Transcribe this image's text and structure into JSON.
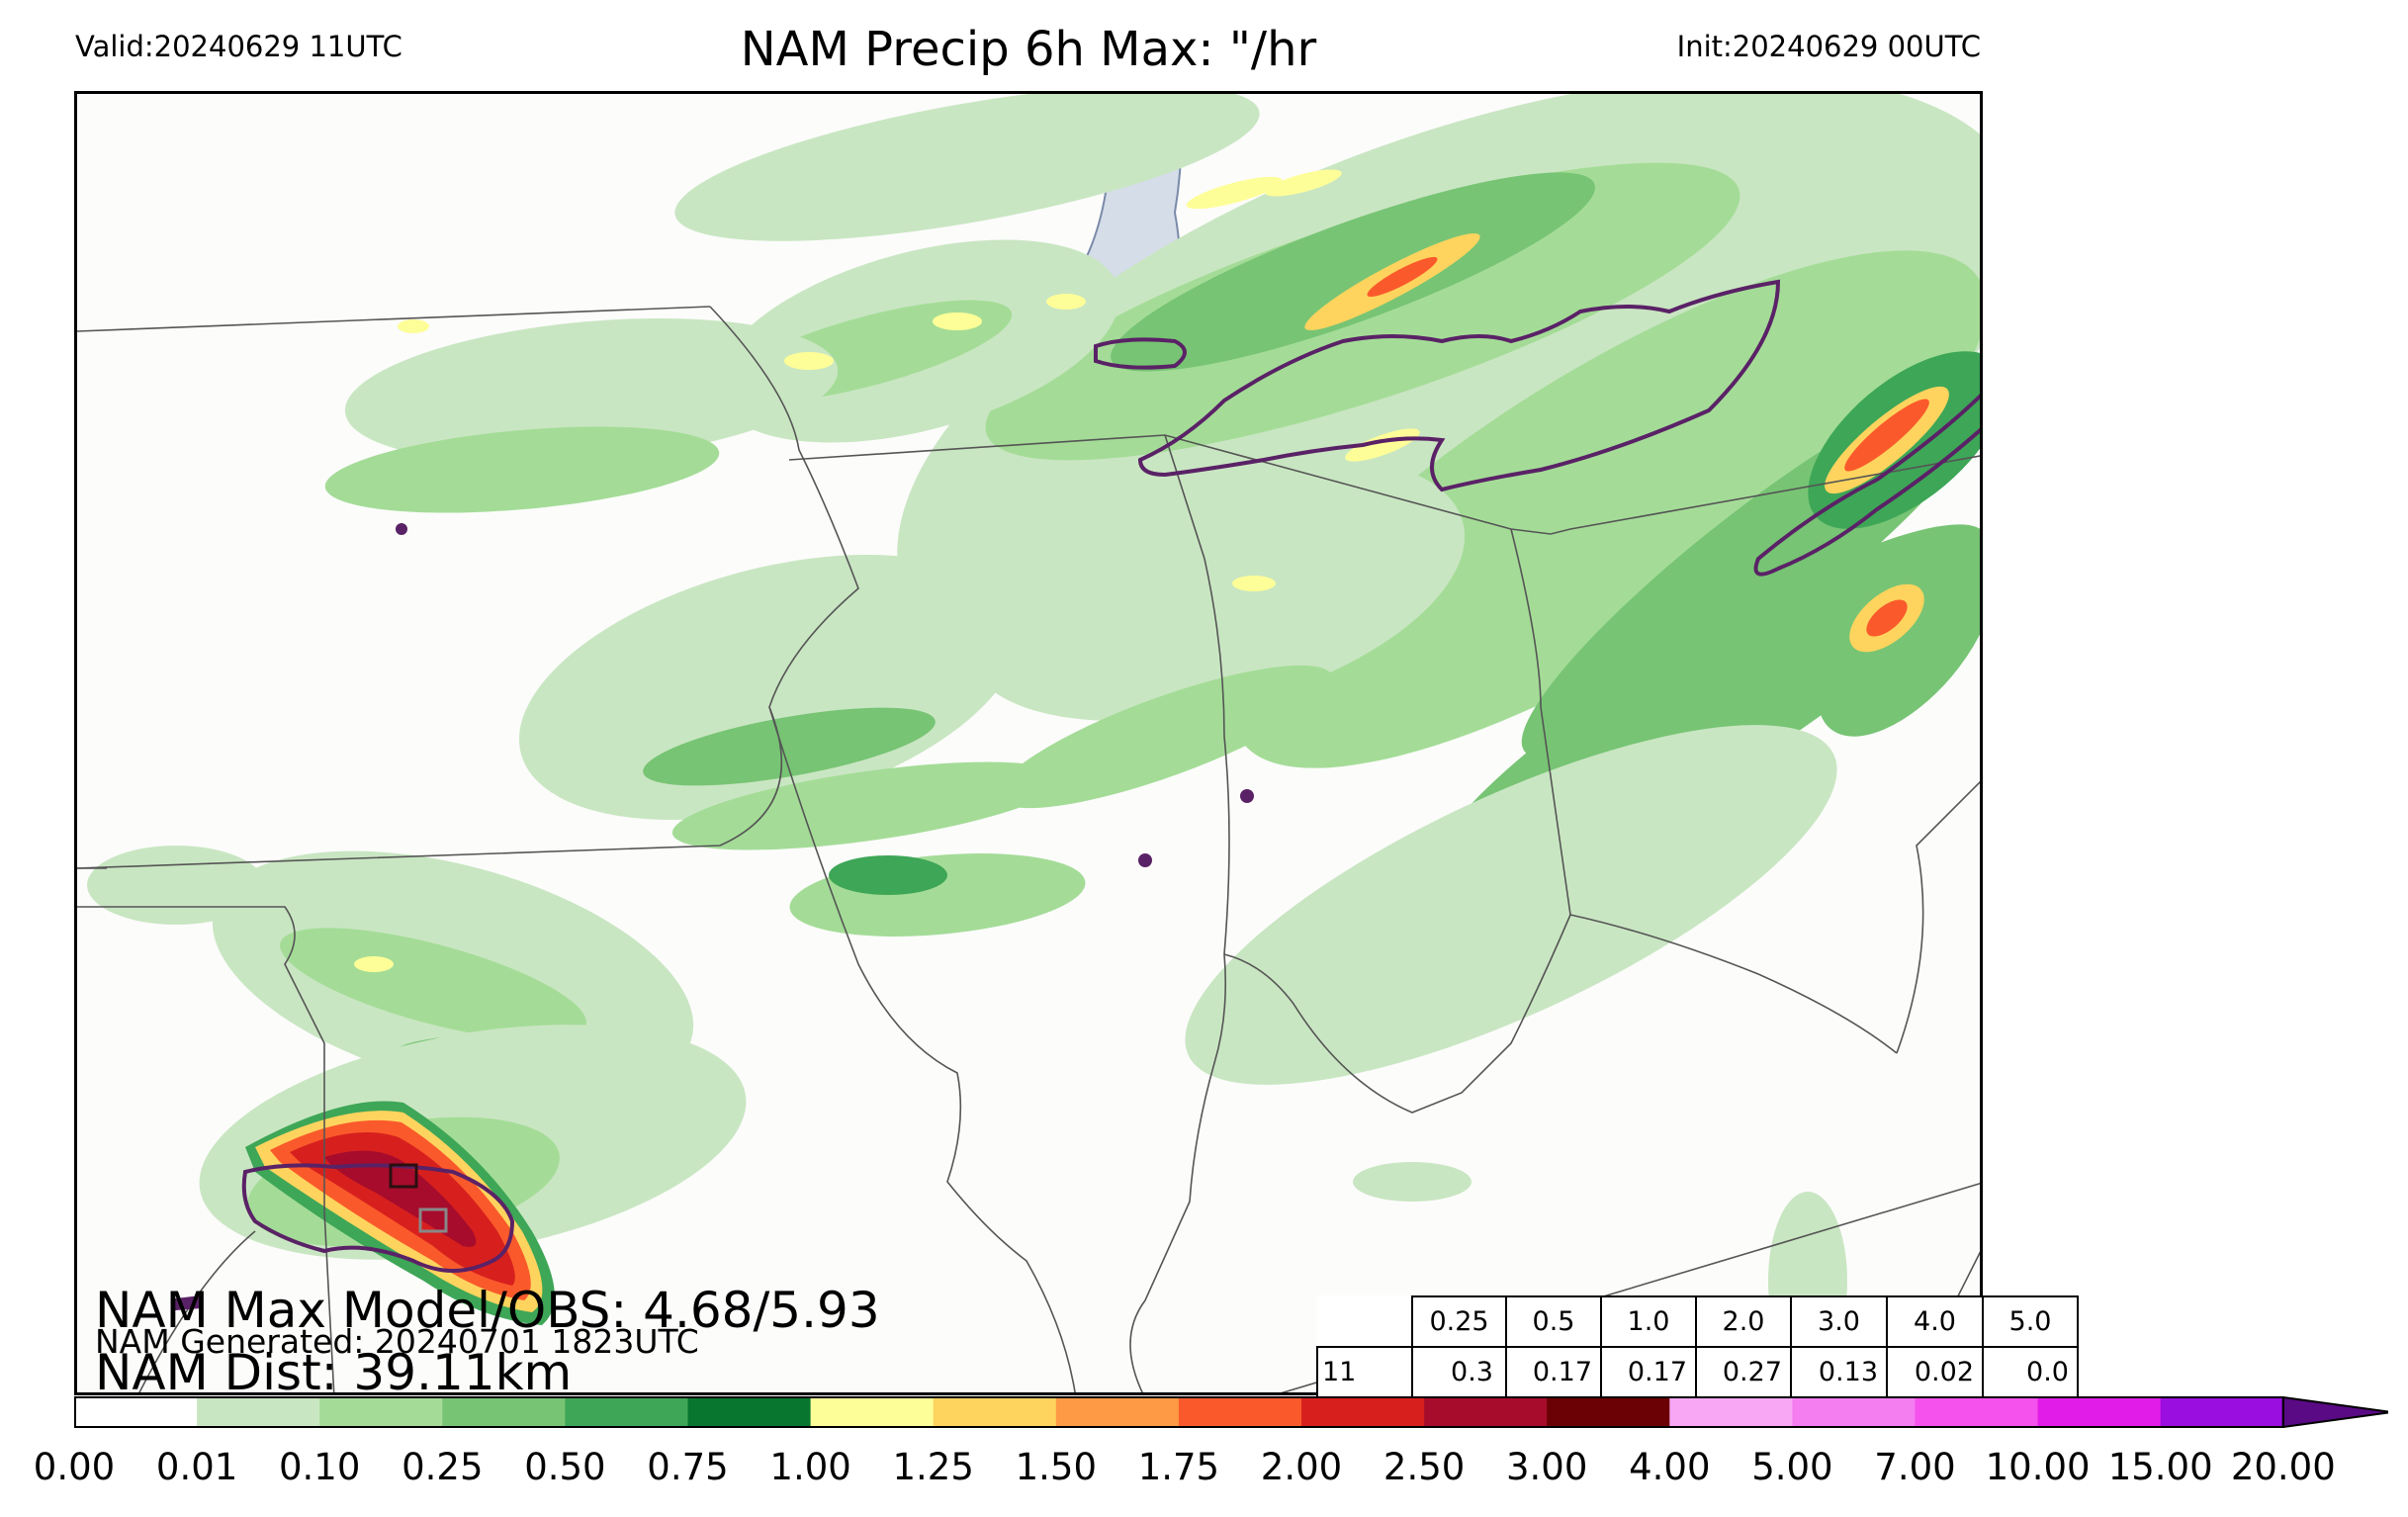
{
  "header": {
    "valid": "Valid:20240629 11UTC",
    "title": "NAM Precip 6h Max: \"/hr",
    "init": "Init:20240629 00UTC"
  },
  "stats": {
    "max_model_obs": "NAM Max Model/OBS: 4.68/5.93",
    "generated": "NAM Generated: 20240701 1823UTC",
    "dist": "NAM Dist: 39.11km"
  },
  "thresholds": {
    "levels": [
      "0.25",
      "0.5",
      "1.0",
      "2.0",
      "3.0",
      "4.0",
      "5.0"
    ],
    "first_cell": "11",
    "values": [
      "0.3",
      "0.17",
      "0.17",
      "0.27",
      "0.13",
      "0.02",
      "0.0"
    ]
  },
  "colorbar": {
    "ticks": [
      "0.00",
      "0.01",
      "0.10",
      "0.25",
      "0.50",
      "0.75",
      "1.00",
      "1.25",
      "1.50",
      "1.75",
      "2.00",
      "2.50",
      "3.00",
      "4.00",
      "5.00",
      "7.00",
      "10.00",
      "15.00",
      "20.00"
    ],
    "colors": [
      "#ffffff",
      "#c9e6c2",
      "#a4dc97",
      "#77c474",
      "#3ea657",
      "#08762f",
      "#fefe98",
      "#fed45e",
      "#fe9a45",
      "#fa5a2b",
      "#d7201e",
      "#a70c2c",
      "#6b0104",
      "#f8a7f5",
      "#f47df0",
      "#f551ec",
      "#e21ce8",
      "#9a0ee0"
    ],
    "extend_color": "#5a0a84"
  },
  "map_colors": {
    "background": "#fcfcfb",
    "lake": "#d5dde8",
    "border": "#555555",
    "contour": "#5a2266",
    "light_green": "#c9e6c2",
    "mid_green": "#a4dc97",
    "green": "#77c474",
    "dark_green": "#3ea657",
    "darkest_green": "#08762f",
    "yellow": "#fefe98",
    "orange": "#fed45e",
    "red_orange": "#fa5a2b",
    "red": "#d7201e",
    "dark_red": "#a70c2c"
  }
}
